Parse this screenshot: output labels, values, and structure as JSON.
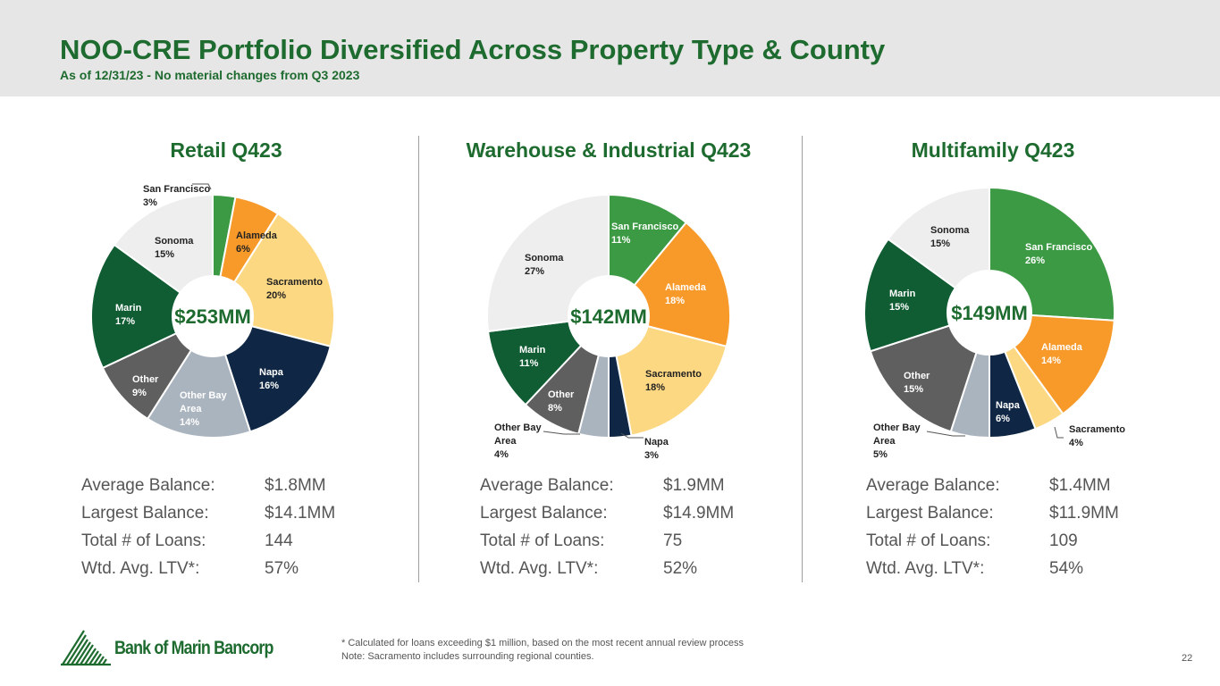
{
  "title": "NOO-CRE Portfolio Diversified Across Property Type & County",
  "subtitle": "As of 12/31/23 - No material changes from Q3 2023",
  "stat_labels": [
    "Average Balance:",
    "Largest Balance:",
    "Total # of Loans:",
    "Wtd. Avg. LTV*:"
  ],
  "colors": {
    "San Francisco": "#3d9a44",
    "Alameda": "#f79a2a",
    "Sacramento": "#fdd882",
    "Napa": "#0f2744",
    "Other Bay Area": "#aab4bf",
    "Other": "#5f5f5f",
    "Marin": "#105c33",
    "Sonoma": "#eeeeee"
  },
  "chart_data": [
    {
      "type": "pie",
      "title": "Retail Q423",
      "center_label": "$253MM",
      "slices": [
        {
          "name": "San Francisco",
          "label": [
            "San Francisco",
            "3%"
          ],
          "value": 3
        },
        {
          "name": "Alameda",
          "label": [
            "Alameda",
            "6%"
          ],
          "value": 6
        },
        {
          "name": "Sacramento",
          "label": [
            "Sacramento",
            "20%"
          ],
          "value": 20
        },
        {
          "name": "Napa",
          "label": [
            "Napa",
            "16%"
          ],
          "value": 16
        },
        {
          "name": "Other Bay Area",
          "label": [
            "Other Bay",
            "Area",
            "14%"
          ],
          "value": 14
        },
        {
          "name": "Other",
          "label": [
            "Other",
            "9%"
          ],
          "value": 9
        },
        {
          "name": "Marin",
          "label": [
            "Marin",
            "17%"
          ],
          "value": 17
        },
        {
          "name": "Sonoma",
          "label": [
            "Sonoma",
            "15%"
          ],
          "value": 15
        }
      ],
      "stats": [
        "$1.8MM",
        "$14.1MM",
        "144",
        "57%"
      ]
    },
    {
      "type": "pie",
      "title": "Warehouse & Industrial Q423",
      "center_label": "$142MM",
      "slices": [
        {
          "name": "San Francisco",
          "label": [
            "San Francisco",
            "11%"
          ],
          "value": 11
        },
        {
          "name": "Alameda",
          "label": [
            "Alameda",
            "18%"
          ],
          "value": 18
        },
        {
          "name": "Sacramento",
          "label": [
            "Sacramento",
            "18%"
          ],
          "value": 18
        },
        {
          "name": "Napa",
          "label": [
            "Napa",
            "3%"
          ],
          "value": 3
        },
        {
          "name": "Other Bay Area",
          "label": [
            "Other Bay",
            "Area",
            "4%"
          ],
          "value": 4
        },
        {
          "name": "Other",
          "label": [
            "Other",
            "8%"
          ],
          "value": 8
        },
        {
          "name": "Marin",
          "label": [
            "Marin",
            "11%"
          ],
          "value": 11
        },
        {
          "name": "Sonoma",
          "label": [
            "Sonoma",
            "27%"
          ],
          "value": 27
        }
      ],
      "stats": [
        "$1.9MM",
        "$14.9MM",
        "75",
        "52%"
      ]
    },
    {
      "type": "pie",
      "title": "Multifamily Q423",
      "center_label": "$149MM",
      "slices": [
        {
          "name": "San Francisco",
          "label": [
            "San Francisco",
            "26%"
          ],
          "value": 26
        },
        {
          "name": "Alameda",
          "label": [
            "Alameda",
            "14%"
          ],
          "value": 14
        },
        {
          "name": "Sacramento",
          "label": [
            "Sacramento",
            "4%"
          ],
          "value": 4
        },
        {
          "name": "Napa",
          "label": [
            "Napa",
            "6%"
          ],
          "value": 6
        },
        {
          "name": "Other Bay Area",
          "label": [
            "Other Bay",
            "Area",
            "5%"
          ],
          "value": 5
        },
        {
          "name": "Other",
          "label": [
            "Other",
            "15%"
          ],
          "value": 15
        },
        {
          "name": "Marin",
          "label": [
            "Marin",
            "15%"
          ],
          "value": 15
        },
        {
          "name": "Sonoma",
          "label": [
            "Sonoma",
            "15%"
          ],
          "value": 15
        }
      ],
      "stats": [
        "$1.4MM",
        "$11.9MM",
        "109",
        "54%"
      ]
    }
  ],
  "logo_text": "Bank of Marin Bancorp",
  "footnotes": [
    "* Calculated for loans exceeding $1 million, based on the most recent annual review process",
    "Note: Sacramento includes surrounding regional counties."
  ],
  "page_number": "22"
}
